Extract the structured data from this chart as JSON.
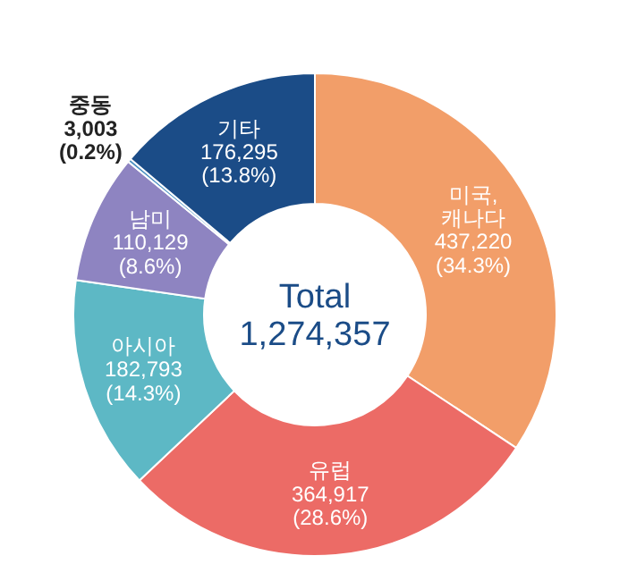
{
  "chart_data": {
    "type": "donut",
    "categories": [
      "미국,\n캐나다",
      "유럽",
      "아시아",
      "남미",
      "중동",
      "기타"
    ],
    "values": [
      437220,
      364917,
      182793,
      110129,
      3003,
      176295
    ],
    "colors": [
      "#f29e69",
      "#ec6b66",
      "#5db8c5",
      "#8e84c1",
      "#4a90c2",
      "#1b4c87"
    ],
    "value_labels": [
      "437,220\n(34.3%)",
      "364,917\n(28.6%)",
      "182,793\n(14.3%)",
      "110,129\n(8.6%)",
      "3,003\n(0.2%)",
      "176,295\n(13.8%)"
    ],
    "annotations": [
      "Total",
      "1,274,357"
    ]
  }
}
